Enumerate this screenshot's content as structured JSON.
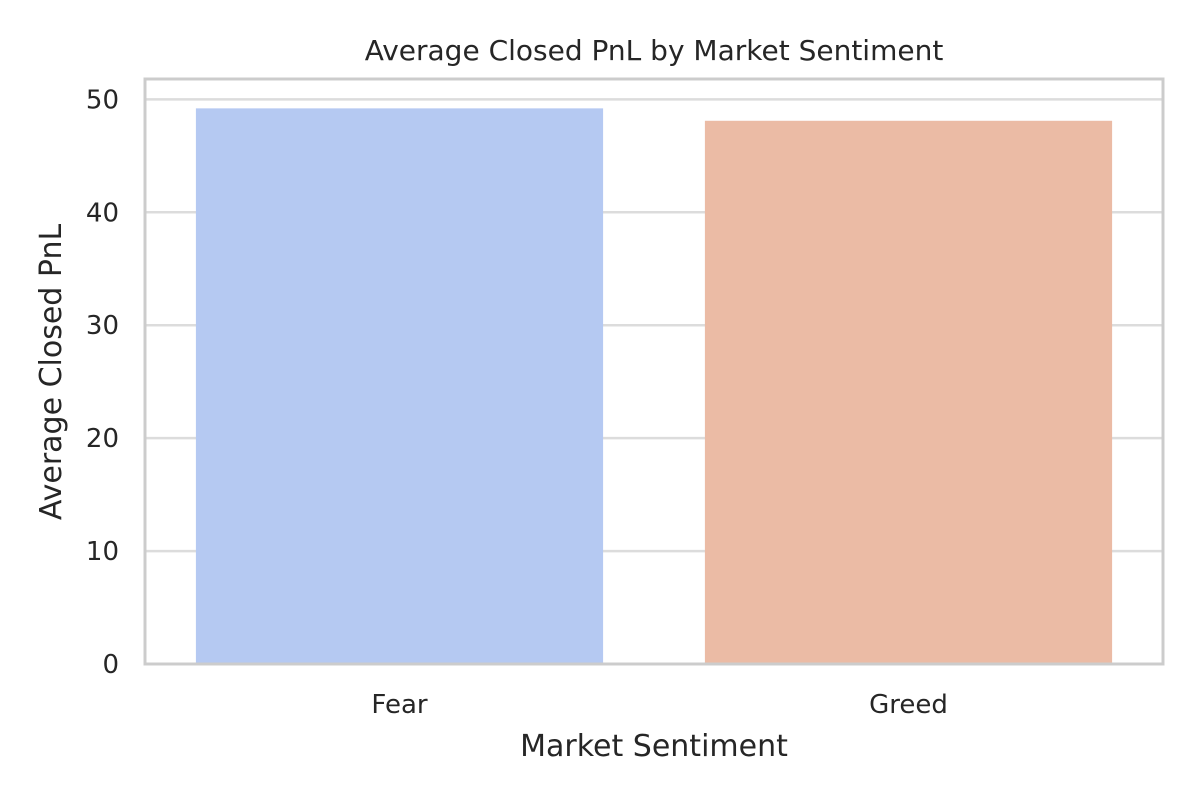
{
  "chart_data": {
    "type": "bar",
    "title": "Average Closed PnL by Market Sentiment",
    "xlabel": "Market Sentiment",
    "ylabel": "Average Closed PnL",
    "categories": [
      "Fear",
      "Greed"
    ],
    "values": [
      49.2,
      48.1
    ],
    "colors": [
      "#b5c9f2",
      "#ebbba5"
    ],
    "ylim": [
      0,
      51.8
    ],
    "yticks": [
      0,
      10,
      20,
      30,
      40,
      50
    ],
    "grid": true,
    "frame_color": "#cccccc",
    "grid_color": "#dcdcdc"
  }
}
